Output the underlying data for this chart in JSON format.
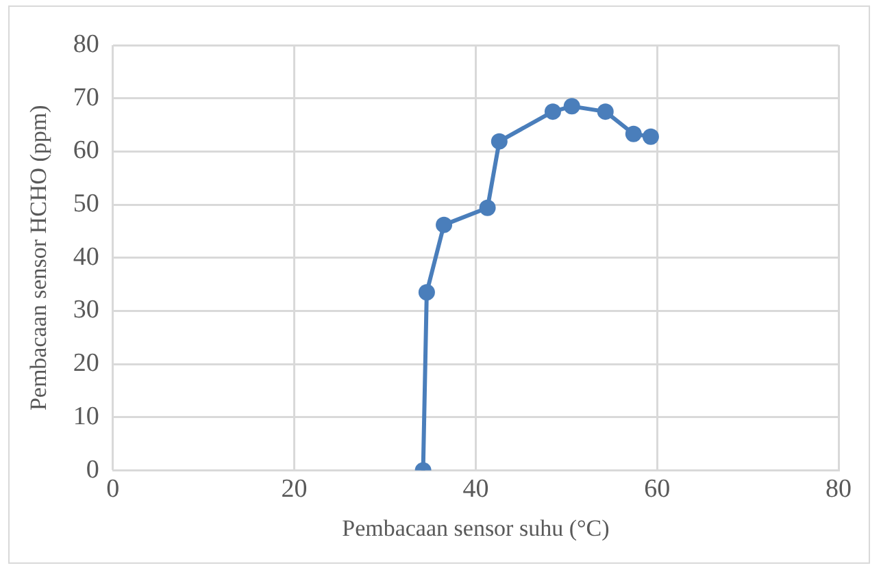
{
  "chart_data": {
    "type": "line",
    "xlabel": "Pembacaan sensor suhu (°C)",
    "ylabel": "Pembacaan sensor HCHO (ppm)",
    "x": [
      34.2,
      34.6,
      36.5,
      41.3,
      42.6,
      48.5,
      50.6,
      54.3,
      57.4,
      59.3
    ],
    "series": [
      {
        "color": "#4a7ebb",
        "values": [
          0,
          33.5,
          46.2,
          49.4,
          61.9,
          67.5,
          68.5,
          67.5,
          63.3,
          62.8
        ]
      }
    ],
    "xlim": [
      0,
      80
    ],
    "xticks": [
      0,
      20,
      40,
      60,
      80
    ],
    "ylim": [
      0,
      80
    ],
    "yticks": [
      0,
      10,
      20,
      30,
      40,
      50,
      60,
      70,
      80
    ],
    "grid": true,
    "marker": "circle",
    "line_style": "solid"
  }
}
